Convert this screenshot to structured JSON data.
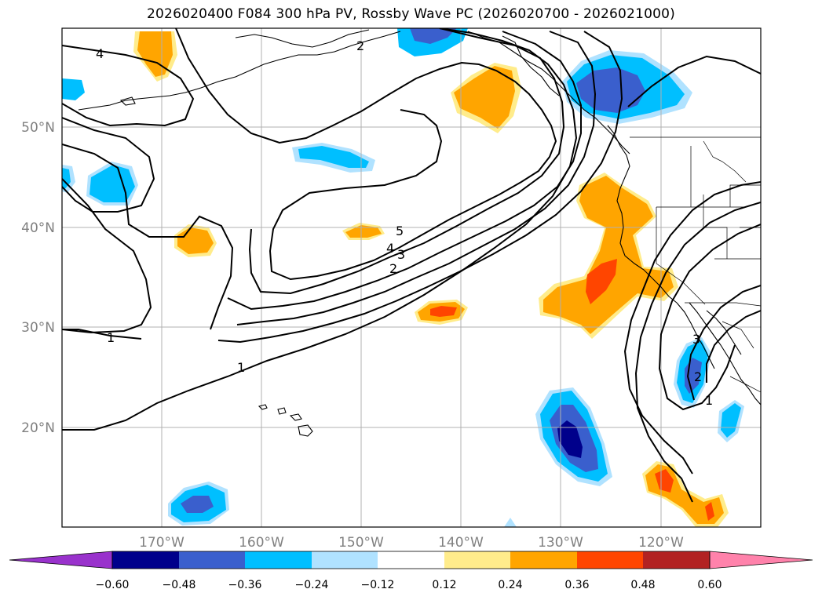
{
  "title": "2026020400 F084 300 hPa PV, Rossby Wave PC (2026020700 - 2026021000)",
  "axes": {
    "lon_labels": [
      "170°W",
      "160°W",
      "150°W",
      "140°W",
      "130°W",
      "120°W"
    ],
    "lat_labels": [
      "50°N",
      "40°N",
      "30°N",
      "20°N"
    ]
  },
  "contour_labels": [
    "4",
    "2",
    "5",
    "4",
    "3",
    "2",
    "1",
    "1",
    "3",
    "2",
    "1"
  ],
  "colorbar": {
    "ticks": [
      "−0.60",
      "−0.48",
      "−0.36",
      "−0.24",
      "−0.12",
      "0.12",
      "0.24",
      "0.36",
      "0.48",
      "0.60"
    ],
    "colors": [
      "#9932cc",
      "#00008b",
      "#3a5fcd",
      "#00bfff",
      "#b0e2ff",
      "#ffffff",
      "#ffec8b",
      "#ffa500",
      "#ff4500",
      "#b22222",
      "#ff82ab"
    ]
  },
  "fill_colors": {
    "light_blue": "#b0e2ff",
    "sky_blue": "#00bfff",
    "royal_blue": "#3a5fcd",
    "navy": "#00008b",
    "light_yellow": "#ffec8b",
    "orange": "#ffa500",
    "orange_red": "#ff4500"
  }
}
